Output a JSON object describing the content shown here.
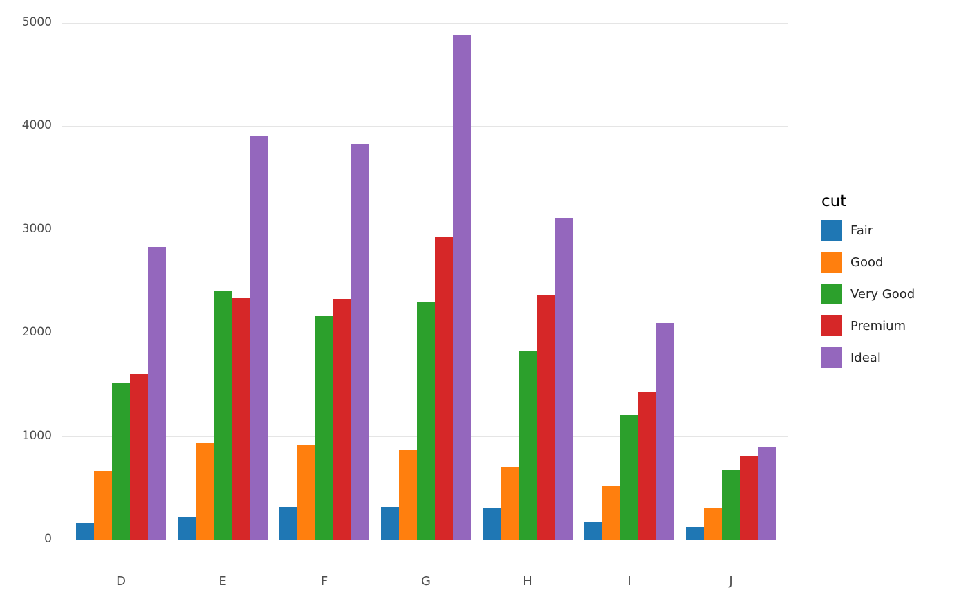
{
  "chart_data": {
    "type": "bar",
    "title": "",
    "legend_title": "cut",
    "legend_position": "right",
    "grid": "horizontal-major",
    "background": "#ffffff",
    "gridline_color": "#e5e5e5",
    "tick_label_color": "#4d4d4d",
    "xlabel": "",
    "ylabel": "",
    "ylim": [
      0,
      5000
    ],
    "yticks": [
      0,
      1000,
      2000,
      3000,
      4000,
      5000
    ],
    "categories": [
      "D",
      "E",
      "F",
      "G",
      "H",
      "I",
      "J"
    ],
    "series": [
      {
        "name": "Fair",
        "color": "#1f77b4",
        "values": [
          163,
          224,
          312,
          314,
          303,
          175,
          119
        ]
      },
      {
        "name": "Good",
        "color": "#ff7f0e",
        "values": [
          662,
          933,
          909,
          871,
          702,
          522,
          307
        ]
      },
      {
        "name": "Very Good",
        "color": "#2ca02c",
        "values": [
          1513,
          2400,
          2164,
          2299,
          1824,
          1204,
          678
        ]
      },
      {
        "name": "Premium",
        "color": "#d62728",
        "values": [
          1603,
          2337,
          2331,
          2924,
          2360,
          1428,
          808
        ]
      },
      {
        "name": "Ideal",
        "color": "#9467bd",
        "values": [
          2834,
          3903,
          3826,
          4884,
          3115,
          2093,
          896
        ]
      }
    ]
  }
}
